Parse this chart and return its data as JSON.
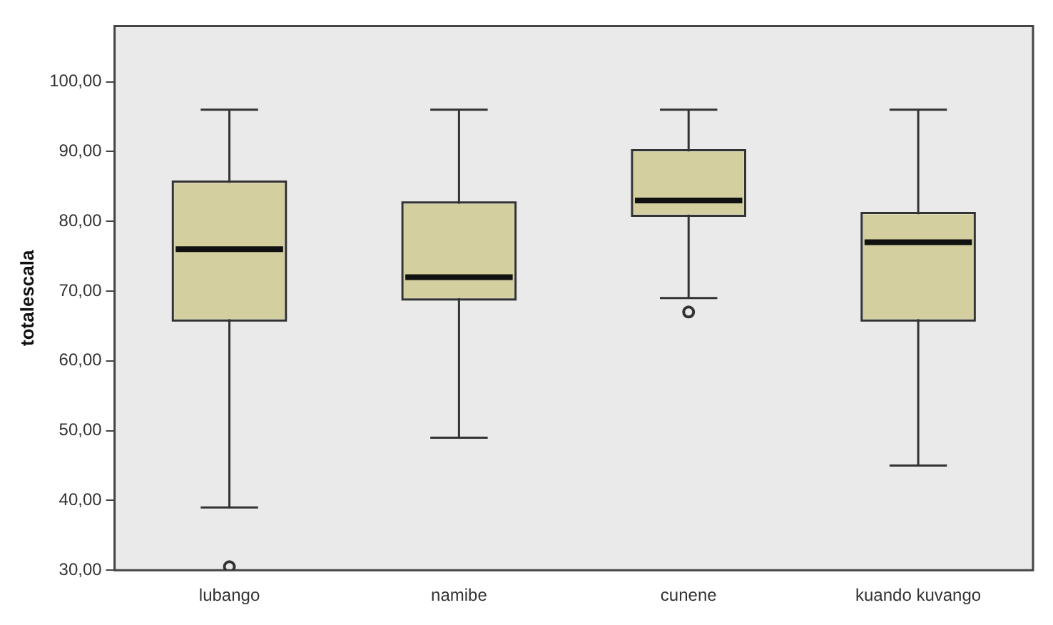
{
  "chart_data": {
    "type": "box",
    "ylabel": "totalescala",
    "categories": [
      "lubango",
      "namibe",
      "cunene",
      "kuando kuvango"
    ],
    "series": [
      {
        "color": "#d3cf9f",
        "boxes": [
          {
            "low": 39,
            "q1": 66,
            "median": 76,
            "q3": 85.5,
            "high": 96,
            "outliers": [
              30.5
            ]
          },
          {
            "low": 49,
            "q1": 69,
            "median": 72,
            "q3": 82.5,
            "high": 96
          },
          {
            "low": 69,
            "q1": 81,
            "median": 83,
            "q3": 90,
            "high": 96,
            "outliers": [
              67
            ]
          },
          {
            "low": 45,
            "q1": 66,
            "median": 77,
            "q3": 81,
            "high": 96
          }
        ]
      }
    ],
    "ylim": [
      30,
      108
    ],
    "yticks": [
      {
        "value": 30,
        "label": "30,00"
      },
      {
        "value": 40,
        "label": "40,00"
      },
      {
        "value": 50,
        "label": "50,00"
      },
      {
        "value": 60,
        "label": "60,00"
      },
      {
        "value": 70,
        "label": "70,00"
      },
      {
        "value": 80,
        "label": "80,00"
      },
      {
        "value": 90,
        "label": "90,00"
      },
      {
        "value": 100,
        "label": "100,00"
      }
    ],
    "grid": false,
    "legend": false
  }
}
